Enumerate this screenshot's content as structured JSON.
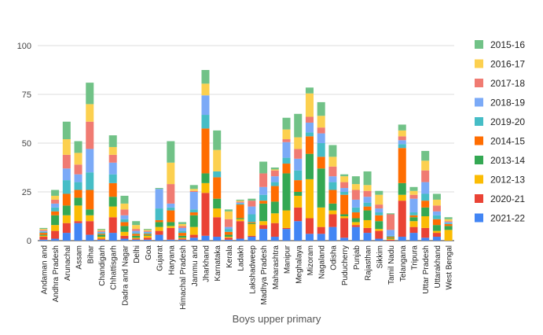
{
  "chart_data": {
    "type": "bar",
    "stacked": true,
    "title": "",
    "xlabel": "Boys upper primary",
    "ylabel": "",
    "ylim": [
      0,
      100
    ],
    "yticks": [
      0,
      25,
      50,
      75,
      100
    ],
    "grid": true,
    "legend_position": "right",
    "categories": [
      "Andaman and",
      "Andhra Pradesh",
      "Arunachal",
      "Assam",
      "Bihar",
      "Chandigarh",
      "Chhattisgarh",
      "Dadra and Nagar",
      "Delhi",
      "Goa",
      "Gujarat",
      "Haryana",
      "Himachal Pradesh",
      "Jammu and",
      "Jharkhand",
      "Karnataka",
      "Kerala",
      "Ladakh",
      "Lakshadweep",
      "Madhya Pradesh",
      "Maharashtra",
      "Manipur",
      "Meghalaya",
      "Mizoram",
      "Nagaland",
      "Odisha",
      "Puducherry",
      "Punjab",
      "Rajasthan",
      "Sikkim",
      "Tamil Nadu",
      "Telangana",
      "Tripura",
      "Uttar Pradesh",
      "Uttarakhand",
      "West Bengal"
    ],
    "series": [
      {
        "name": "2021-22",
        "color": "#4285f4",
        "values": [
          0.5,
          1,
          4,
          9,
          3,
          0.5,
          4,
          1,
          0.5,
          0.5,
          3,
          0.5,
          0.5,
          1.5,
          2.5,
          2,
          0.5,
          1,
          2,
          6,
          2,
          6,
          10,
          3.5,
          3.5,
          7,
          1.5,
          7,
          4,
          1,
          0,
          2,
          4,
          1.5,
          2,
          0
        ]
      },
      {
        "name": "2020-21",
        "color": "#ea4335",
        "values": [
          1.5,
          4,
          5,
          1,
          7,
          0.5,
          8,
          1.5,
          0.5,
          1,
          2,
          6,
          0.5,
          1.5,
          22,
          10,
          1,
          9,
          0.5,
          2,
          7,
          0.5,
          7,
          8,
          3.5,
          6.5,
          10,
          1,
          2.5,
          4,
          0.5,
          18.5,
          3,
          5,
          2,
          0
        ]
      },
      {
        "name": "2012-13",
        "color": "#fbbc04",
        "values": [
          0.5,
          3,
          4,
          8,
          3,
          1,
          5.5,
          2,
          0.5,
          1,
          2,
          1,
          0.5,
          4,
          5,
          4.5,
          0.5,
          1,
          6,
          2,
          5,
          9,
          6,
          20,
          10,
          2,
          1,
          1.5,
          4,
          1,
          0.5,
          3,
          3,
          6,
          1,
          5.5
        ]
      },
      {
        "name": "2013-14",
        "color": "#34a853",
        "values": [
          0.5,
          5,
          5,
          4,
          3,
          1,
          5,
          3,
          1,
          0.5,
          2.5,
          2,
          1,
          6,
          5,
          5,
          1,
          0.5,
          0.5,
          9,
          6,
          19,
          2,
          13,
          20,
          3.5,
          1,
          2,
          5,
          4,
          0.5,
          6,
          2,
          4.5,
          3,
          2
        ]
      },
      {
        "name": "2014-15",
        "color": "#ff6d01",
        "values": [
          1,
          2,
          6,
          4,
          10,
          0.5,
          7,
          2,
          1,
          0.5,
          1,
          6,
          1.5,
          1.5,
          23,
          11,
          1.5,
          7,
          0.5,
          1.5,
          8,
          5,
          6,
          9,
          6,
          7,
          10,
          3,
          2,
          3,
          0.5,
          18,
          1,
          3.5,
          3,
          1
        ]
      },
      {
        "name": "2019-20",
        "color": "#46bdc6",
        "values": [
          0.5,
          2,
          7,
          4,
          9,
          0.5,
          4.5,
          1.5,
          0.5,
          0.5,
          6,
          1.5,
          1,
          1.5,
          7,
          3,
          1.5,
          0.5,
          4,
          3,
          2,
          3,
          5,
          2,
          7,
          4,
          1.5,
          2.5,
          2,
          1.5,
          0.5,
          2,
          1.5,
          3.5,
          2,
          0.5
        ]
      },
      {
        "name": "2018-19",
        "color": "#7baaf7",
        "values": [
          0.5,
          2,
          6,
          4,
          12,
          0.5,
          6,
          2,
          1,
          0.5,
          10,
          2,
          1.5,
          9,
          10,
          0,
          1,
          0.5,
          4,
          4,
          3,
          8,
          6,
          5,
          5,
          3,
          2,
          4,
          3,
          2,
          3,
          2,
          7,
          6,
          2,
          0.5
        ]
      },
      {
        "name": "2017-18",
        "color": "#f07b72",
        "values": [
          0.5,
          2,
          7,
          5,
          14,
          0.5,
          4,
          3,
          1,
          0.5,
          0,
          10,
          1,
          0.5,
          0,
          0,
          4,
          0.5,
          3,
          7,
          3,
          1.5,
          5,
          3,
          3,
          5,
          3,
          5,
          3,
          2,
          8,
          2,
          2,
          6,
          3,
          0.5
        ]
      },
      {
        "name": "2016-17",
        "color": "#fcd04f",
        "values": [
          0.5,
          2,
          8,
          6,
          9,
          0.5,
          4,
          3,
          2,
          0.5,
          0,
          11,
          1,
          1,
          6,
          11,
          4,
          0.5,
          0,
          0,
          0.5,
          5,
          6,
          12,
          6,
          5,
          3,
          3,
          3,
          5,
          0,
          3,
          2,
          5,
          3,
          1
        ]
      },
      {
        "name": "2015-16",
        "color": "#71c287",
        "values": [
          0.5,
          3,
          9,
          6,
          11,
          0.5,
          6,
          4,
          2,
          0.5,
          0.5,
          11,
          1,
          2,
          7,
          10,
          1,
          0.5,
          1,
          6,
          1,
          6,
          12,
          3,
          7,
          6,
          1,
          4,
          7,
          2,
          0.5,
          3,
          2,
          5,
          3,
          1
        ]
      }
    ],
    "legend_order": [
      "2015-16",
      "2016-17",
      "2017-18",
      "2018-19",
      "2019-20",
      "2014-15",
      "2013-14",
      "2012-13",
      "2020-21",
      "2021-22"
    ]
  }
}
